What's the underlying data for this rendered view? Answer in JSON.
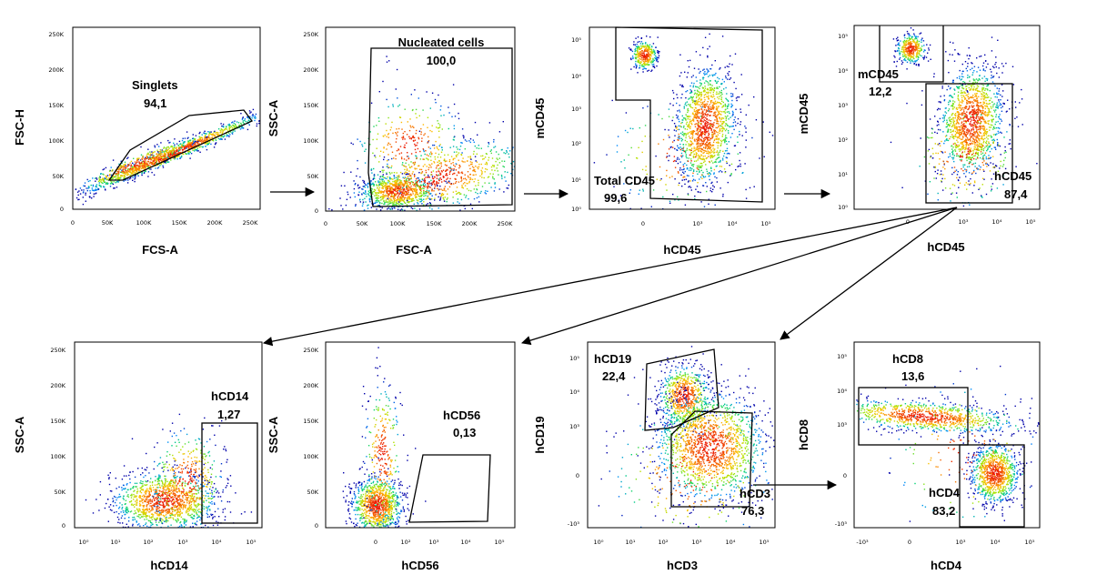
{
  "chart_data": [
    {
      "type": "scatter",
      "xlabel": "FCS-A",
      "ylabel": "FSC-H",
      "xticks": [
        "0",
        "50K",
        "100K",
        "150K",
        "200K",
        "250K"
      ],
      "yticks": [
        "0",
        "50K",
        "100K",
        "150K",
        "200K",
        "250K"
      ],
      "gates": [
        {
          "name": "Singlets",
          "value": "94,1"
        }
      ]
    },
    {
      "type": "scatter",
      "xlabel": "FSC-A",
      "ylabel": "SSC-A",
      "xticks": [
        "0",
        "50K",
        "100K",
        "150K",
        "200K",
        "250K"
      ],
      "yticks": [
        "0",
        "50K",
        "100K",
        "150K",
        "200K",
        "250K"
      ],
      "gates": [
        {
          "name": "Nucleated cells",
          "value": "100,0"
        }
      ]
    },
    {
      "type": "scatter",
      "xlabel": "hCD45",
      "ylabel": "mCD45",
      "xticks": [
        "0",
        "10³",
        "10⁴",
        "10⁵"
      ],
      "yticks": [
        "10⁰",
        "10¹",
        "10²",
        "10³",
        "10⁴",
        "10⁵"
      ],
      "gates": [
        {
          "name": "Total CD45",
          "value": "99,6"
        }
      ]
    },
    {
      "type": "scatter",
      "xlabel": "hCD45",
      "ylabel": "mCD45",
      "xticks": [
        "0",
        "10³",
        "10⁴",
        "10⁵"
      ],
      "yticks": [
        "10⁰",
        "10¹",
        "10²",
        "10³",
        "10⁴",
        "10⁵"
      ],
      "gates": [
        {
          "name": "mCD45",
          "value": "12,2"
        },
        {
          "name": "hCD45",
          "value": "87,4"
        }
      ]
    },
    {
      "type": "scatter",
      "xlabel": "hCD14",
      "ylabel": "SSC-A",
      "xticks": [
        "10⁰",
        "10¹",
        "10²",
        "10³",
        "10⁴",
        "10⁵"
      ],
      "yticks": [
        "0",
        "50K",
        "100K",
        "150K",
        "200K",
        "250K"
      ],
      "gates": [
        {
          "name": "hCD14",
          "value": "1,27"
        }
      ]
    },
    {
      "type": "scatter",
      "xlabel": "hCD56",
      "ylabel": "SSC-A",
      "xticks": [
        "0",
        "10²",
        "10³",
        "10⁴",
        "10⁵"
      ],
      "yticks": [
        "0",
        "50K",
        "100K",
        "150K",
        "200K",
        "250K"
      ],
      "gates": [
        {
          "name": "hCD56",
          "value": "0,13"
        }
      ]
    },
    {
      "type": "scatter",
      "xlabel": "hCD3",
      "ylabel": "hCD19",
      "xticks": [
        "10⁰",
        "10¹",
        "10²",
        "10³",
        "10⁴",
        "10⁵"
      ],
      "yticks": [
        "-10³",
        "0",
        "10³",
        "10⁴",
        "10⁵"
      ],
      "gates": [
        {
          "name": "hCD19",
          "value": "22,4"
        },
        {
          "name": "hCD3",
          "value": "76,3"
        }
      ]
    },
    {
      "type": "scatter",
      "xlabel": "hCD4",
      "ylabel": "hCD8",
      "xticks": [
        "-10³",
        "0",
        "10³",
        "10⁴",
        "10⁵"
      ],
      "yticks": [
        "-10³",
        "0",
        "10³",
        "10⁴",
        "10⁵"
      ],
      "gates": [
        {
          "name": "hCD8",
          "value": "13,6"
        },
        {
          "name": "hCD4",
          "value": "83,2"
        }
      ]
    }
  ]
}
